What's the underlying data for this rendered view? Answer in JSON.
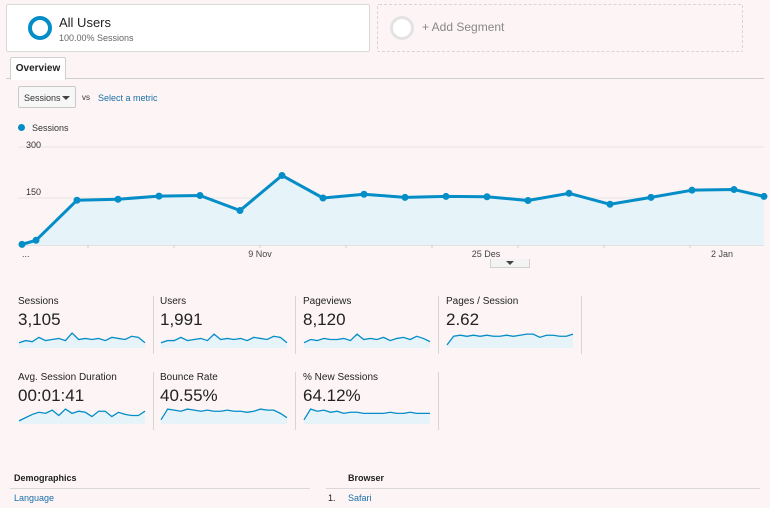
{
  "segments": {
    "active": {
      "title": "All Users",
      "subtitle": "100.00% Sessions"
    },
    "add_label": "+ Add Segment"
  },
  "tabs": [
    {
      "label": "Overview",
      "selected": true
    }
  ],
  "metric_picker": {
    "selected": "Sessions",
    "vs_label": "vs",
    "select_link": "Select a metric"
  },
  "legend": {
    "series_name": "Sessions",
    "color": "#058dc7"
  },
  "chart_data": {
    "type": "area",
    "series": [
      {
        "name": "Sessions",
        "values": [
          2,
          15,
          143,
          146,
          156,
          158,
          110,
          222,
          150,
          162,
          152,
          155,
          154,
          142,
          165,
          130,
          152,
          175,
          177,
          155
        ]
      }
    ],
    "yticks": [
      "300",
      "150"
    ],
    "ylim": [
      0,
      300
    ],
    "xtick_labels": [
      "...",
      "9 Nov",
      "25 Des",
      "2 Jan"
    ],
    "grid": true,
    "line_color": "#058dc7",
    "fill_color": "#e6f3f9"
  },
  "kpis": [
    {
      "label": "Sessions",
      "value": "3,105",
      "spark": [
        4,
        6,
        5,
        9,
        6,
        7,
        8,
        6,
        13,
        7,
        8,
        7,
        8,
        6,
        9,
        8,
        7,
        10,
        9,
        4
      ]
    },
    {
      "label": "Users",
      "value": "1,991",
      "spark": [
        4,
        6,
        6,
        9,
        6,
        7,
        8,
        6,
        12,
        7,
        8,
        7,
        8,
        6,
        9,
        8,
        7,
        10,
        9,
        4
      ]
    },
    {
      "label": "Pageviews",
      "value": "8,120",
      "spark": [
        4,
        7,
        6,
        8,
        7,
        7,
        8,
        6,
        12,
        7,
        8,
        7,
        9,
        6,
        8,
        9,
        7,
        10,
        8,
        5
      ]
    },
    {
      "label": "Pages / Session",
      "value": "2.62",
      "spark": [
        2,
        10,
        11,
        10,
        11,
        10,
        11,
        10,
        10,
        11,
        10,
        11,
        12,
        12,
        9,
        11,
        11,
        10,
        10,
        12
      ]
    },
    {
      "label": "Avg. Session Duration",
      "value": "00:01:41",
      "spark": [
        2,
        5,
        8,
        10,
        9,
        12,
        7,
        13,
        9,
        11,
        10,
        6,
        11,
        11,
        6,
        10,
        8,
        7,
        7,
        11
      ]
    },
    {
      "label": "Bounce Rate",
      "value": "40.55%",
      "spark": [
        3,
        13,
        12,
        11,
        13,
        12,
        11,
        12,
        11,
        11,
        12,
        11,
        11,
        10,
        11,
        13,
        12,
        12,
        9,
        5
      ]
    },
    {
      "label": "% New Sessions",
      "value": "64.12%",
      "spark": [
        3,
        13,
        11,
        12,
        10,
        11,
        9,
        10,
        10,
        9,
        9,
        9,
        9,
        10,
        9,
        9,
        10,
        9,
        9,
        9
      ]
    }
  ],
  "demographics": {
    "title": "Demographics",
    "first_item": "Language"
  },
  "browser": {
    "title": "Browser",
    "first_rank": "1.",
    "first_item": "Safari"
  }
}
